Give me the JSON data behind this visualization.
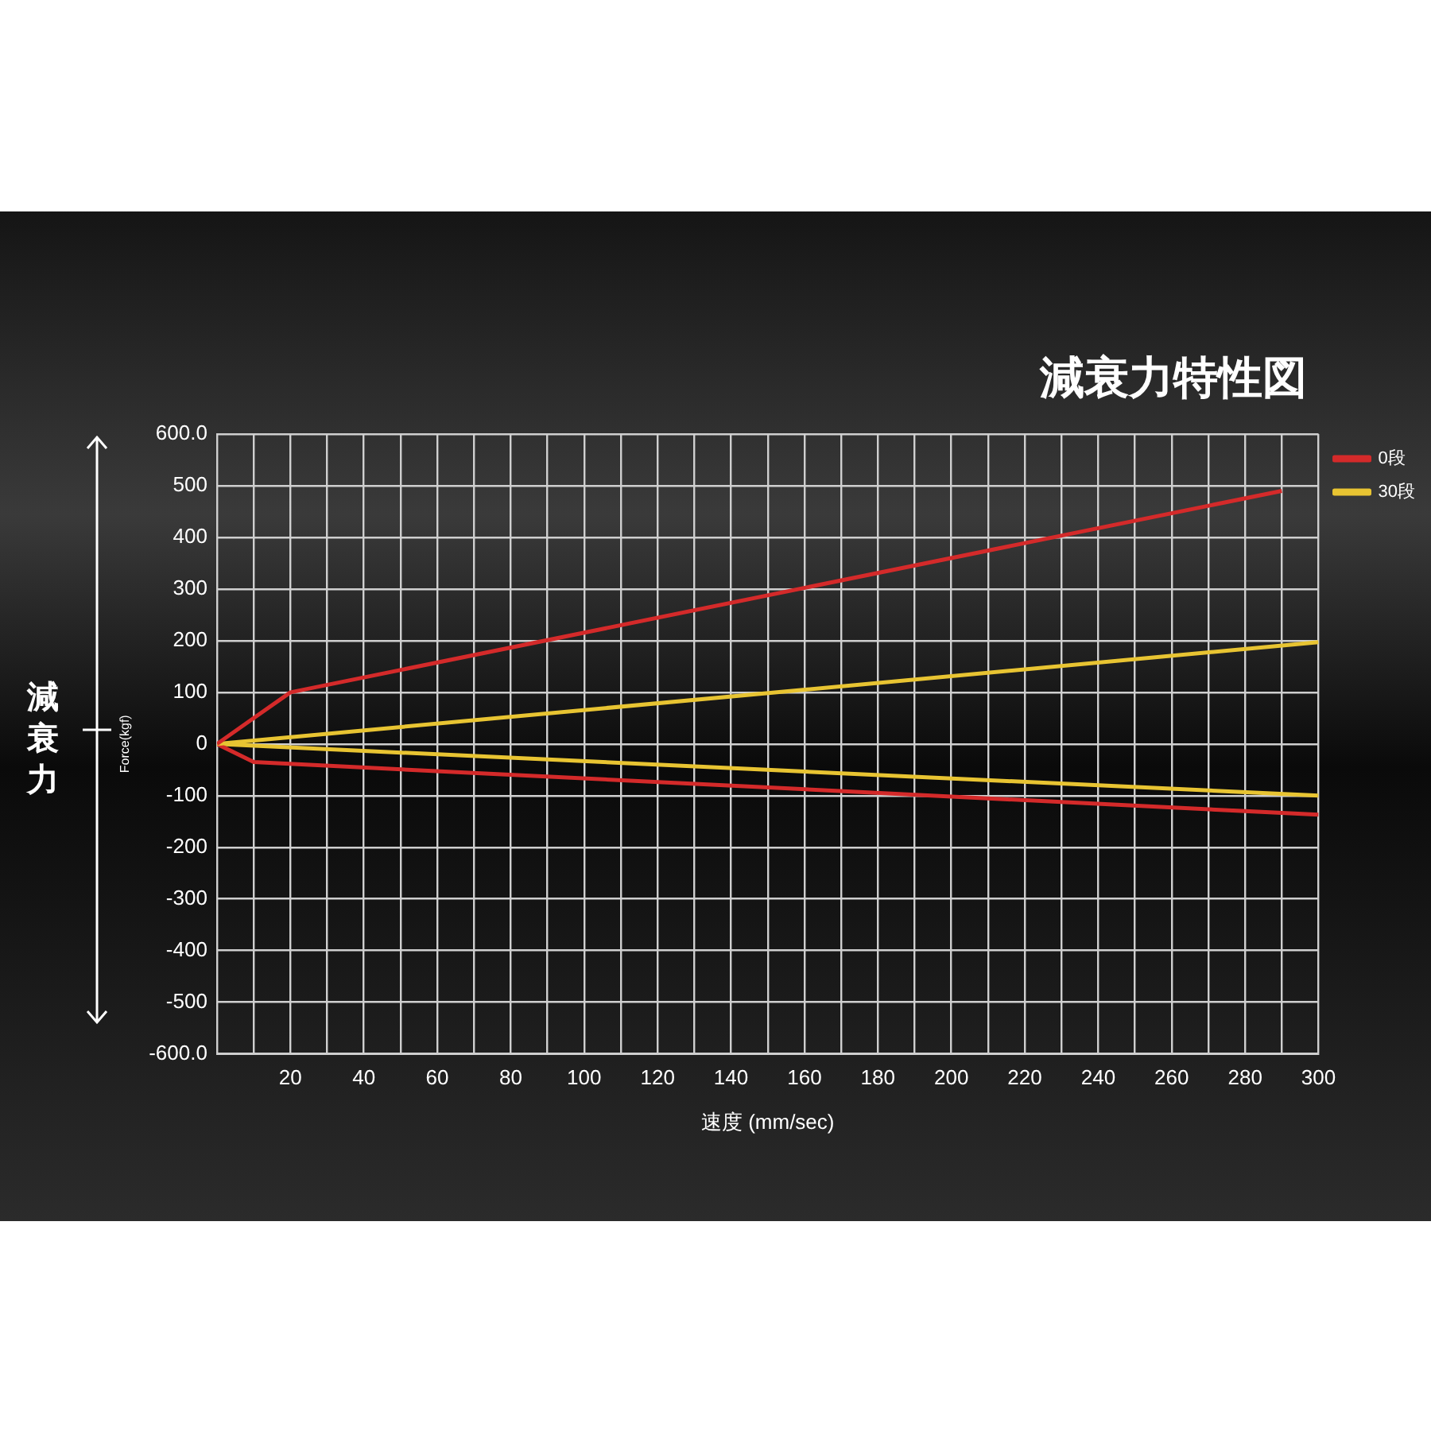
{
  "chart_data": {
    "type": "line",
    "title": "減衰力特性図",
    "xlabel": "速度 (mm/sec)",
    "ylabel": "Force(kgf)",
    "annotations": [
      "減衰力"
    ],
    "series": [
      {
        "name": "0段",
        "color": "#d42a2a",
        "x": [
          0,
          10,
          20,
          290
        ],
        "values": [
          0,
          50,
          100,
          490
        ]
      },
      {
        "name": "30段",
        "color": "#e8c432",
        "x": [
          0,
          300
        ],
        "values": [
          0,
          197
        ]
      },
      {
        "color": "#d42a2a",
        "x": [
          0,
          10,
          300
        ],
        "values": [
          0,
          -35,
          -137
        ]
      },
      {
        "color": "#e8c432",
        "x": [
          0,
          300
        ],
        "values": [
          0,
          -100
        ]
      }
    ],
    "xlim": [
      0,
      300
    ],
    "xticks": [
      {
        "value": 0,
        "label": null
      },
      {
        "value": 10,
        "label": null
      },
      20,
      {
        "value": 30,
        "label": null
      },
      40,
      {
        "value": 50,
        "label": null
      },
      60,
      {
        "value": 70,
        "label": null
      },
      80,
      {
        "value": 90,
        "label": null
      },
      100,
      {
        "value": 110,
        "label": null
      },
      120,
      {
        "value": 130,
        "label": null
      },
      140,
      {
        "value": 150,
        "label": null
      },
      160,
      {
        "value": 170,
        "label": null
      },
      180,
      {
        "value": 190,
        "label": null
      },
      200,
      {
        "value": 210,
        "label": null
      },
      220,
      {
        "value": 230,
        "label": null
      },
      240,
      {
        "value": 250,
        "label": null
      },
      260,
      {
        "value": 270,
        "label": null
      },
      280,
      {
        "value": 290,
        "label": null
      },
      300
    ],
    "ylim": [
      -600,
      600
    ],
    "yticks": [
      {
        "value": -600,
        "label": "-600.0"
      },
      -500,
      -400,
      -300,
      -200,
      -100,
      0,
      100,
      200,
      300,
      400,
      500,
      {
        "value": 600,
        "label": "600.0"
      }
    ],
    "grid": true,
    "legend": "top right",
    "marker": "none",
    "line_style": "solid"
  }
}
